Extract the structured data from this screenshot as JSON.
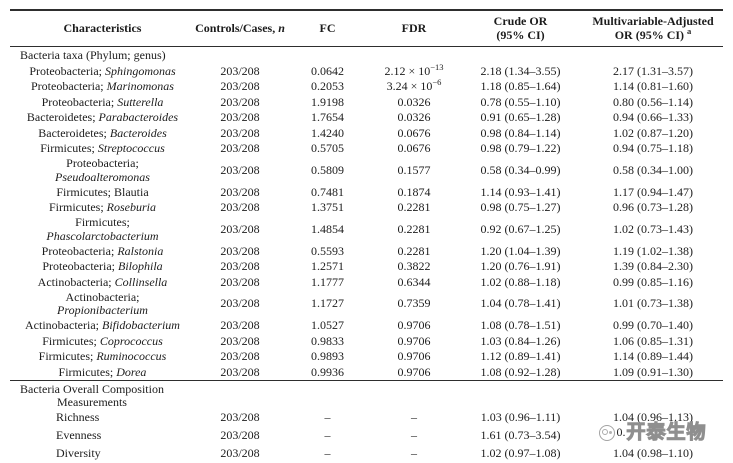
{
  "colors": {
    "rule": "#2e2e2e",
    "text": "#1c1c1c",
    "watermark_gray": "#8f8f8f"
  },
  "header": {
    "characteristics": "Characteristics",
    "controls_cases_prefix": "Controls/Cases, ",
    "controls_cases_n": "n",
    "fc": "FC",
    "fdr": "FDR",
    "crude_line1": "Crude OR",
    "crude_line2": "(95% CI)",
    "adj_line1": "Multivariable-Adjusted",
    "adj_line2": "OR (95% CI)",
    "adj_sup": "a"
  },
  "rows": [
    {
      "kind": "section",
      "lines": [
        "Bacteria taxa (Phylum; genus)"
      ]
    },
    {
      "kind": "taxon",
      "phylum": "Proteobacteria",
      "genus": "Sphingomonas",
      "italic_genus": true,
      "stacked": false,
      "n": "203/208",
      "fc": "0.0642",
      "fdr": "2.12 × 10",
      "fdr_exp": "−13",
      "crude": "2.18 (1.34–3.55)",
      "adj": "2.17 (1.31–3.57)"
    },
    {
      "kind": "taxon",
      "phylum": "Proteobacteria",
      "genus": "Marinomonas",
      "italic_genus": true,
      "stacked": false,
      "n": "203/208",
      "fc": "0.2053",
      "fdr": "3.24 × 10",
      "fdr_exp": "−6",
      "crude": "1.18 (0.85–1.64)",
      "adj": "1.14 (0.81–1.60)"
    },
    {
      "kind": "taxon",
      "phylum": "Proteobacteria",
      "genus": "Sutterella",
      "italic_genus": true,
      "stacked": false,
      "n": "203/208",
      "fc": "1.9198",
      "fdr": "0.0326",
      "crude": "0.78 (0.55–1.10)",
      "adj": "0.80 (0.56–1.14)"
    },
    {
      "kind": "taxon",
      "phylum": "Bacteroidetes",
      "genus": "Parabacteroides",
      "italic_genus": true,
      "stacked": false,
      "n": "203/208",
      "fc": "1.7654",
      "fdr": "0.0326",
      "crude": "0.91 (0.65–1.28)",
      "adj": "0.94 (0.66–1.33)"
    },
    {
      "kind": "taxon",
      "phylum": "Bacteroidetes",
      "genus": "Bacteroides",
      "italic_genus": true,
      "stacked": false,
      "n": "203/208",
      "fc": "1.4240",
      "fdr": "0.0676",
      "crude": "0.98 (0.84–1.14)",
      "adj": "1.02 (0.87–1.20)"
    },
    {
      "kind": "taxon",
      "phylum": "Firmicutes",
      "genus": "Streptococcus",
      "italic_genus": true,
      "stacked": false,
      "n": "203/208",
      "fc": "0.5705",
      "fdr": "0.0676",
      "crude": "0.98 (0.79–1.22)",
      "adj": "0.94 (0.75–1.18)"
    },
    {
      "kind": "taxon",
      "phylum": "Proteobacteria",
      "genus": "Pseudoalteromonas",
      "italic_genus": true,
      "stacked": true,
      "n": "203/208",
      "fc": "0.5809",
      "fdr": "0.1577",
      "crude": "0.58 (0.34–0.99)",
      "adj": "0.58 (0.34–1.00)"
    },
    {
      "kind": "taxon",
      "phylum": "Firmicutes",
      "genus": "Blautia",
      "italic_genus": false,
      "stacked": false,
      "n": "203/208",
      "fc": "0.7481",
      "fdr": "0.1874",
      "crude": "1.14 (0.93–1.41)",
      "adj": "1.17 (0.94–1.47)"
    },
    {
      "kind": "taxon",
      "phylum": "Firmicutes",
      "genus": "Roseburia",
      "italic_genus": true,
      "stacked": false,
      "n": "203/208",
      "fc": "1.3751",
      "fdr": "0.2281",
      "crude": "0.98 (0.75–1.27)",
      "adj": "0.96 (0.73–1.28)"
    },
    {
      "kind": "taxon",
      "phylum": "Firmicutes",
      "genus": "Phascolarctobacterium",
      "italic_genus": true,
      "stacked": true,
      "n": "203/208",
      "fc": "1.4854",
      "fdr": "0.2281",
      "crude": "0.92 (0.67–1.25)",
      "adj": "1.02 (0.73–1.43)"
    },
    {
      "kind": "taxon",
      "phylum": "Proteobacteria",
      "genus": "Ralstonia",
      "italic_genus": true,
      "stacked": false,
      "n": "203/208",
      "fc": "0.5593",
      "fdr": "0.2281",
      "crude": "1.20 (1.04–1.39)",
      "adj": "1.19 (1.02–1.38)"
    },
    {
      "kind": "taxon",
      "phylum": "Proteobacteria",
      "genus": "Bilophila",
      "italic_genus": true,
      "stacked": false,
      "n": "203/208",
      "fc": "1.2571",
      "fdr": "0.3822",
      "crude": "1.20 (0.76–1.91)",
      "adj": "1.39 (0.84–2.30)"
    },
    {
      "kind": "taxon",
      "phylum": "Actinobacteria",
      "genus": "Collinsella",
      "italic_genus": true,
      "stacked": false,
      "n": "203/208",
      "fc": "1.1777",
      "fdr": "0.6344",
      "crude": "1.02 (0.88–1.18)",
      "adj": "0.99 (0.85–1.16)"
    },
    {
      "kind": "taxon",
      "phylum": "Actinobacteria",
      "genus": "Propionibacterium",
      "italic_genus": true,
      "stacked": true,
      "n": "203/208",
      "fc": "1.1727",
      "fdr": "0.7359",
      "crude": "1.04 (0.78–1.41)",
      "adj": "1.01 (0.73–1.38)"
    },
    {
      "kind": "taxon",
      "phylum": "Actinobacteria",
      "genus": "Bifidobacterium",
      "italic_genus": true,
      "stacked": false,
      "n": "203/208",
      "fc": "1.0527",
      "fdr": "0.9706",
      "crude": "1.08 (0.78–1.51)",
      "adj": "0.99 (0.70–1.40)"
    },
    {
      "kind": "taxon",
      "phylum": "Firmicutes",
      "genus": "Coprococcus",
      "italic_genus": true,
      "stacked": false,
      "n": "203/208",
      "fc": "0.9833",
      "fdr": "0.9706",
      "crude": "1.03 (0.84–1.26)",
      "adj": "1.06 (0.85–1.31)"
    },
    {
      "kind": "taxon",
      "phylum": "Firmicutes",
      "genus": "Ruminococcus",
      "italic_genus": true,
      "stacked": false,
      "n": "203/208",
      "fc": "0.9893",
      "fdr": "0.9706",
      "crude": "1.12 (0.89–1.41)",
      "adj": "1.14 (0.89–1.44)"
    },
    {
      "kind": "taxon",
      "phylum": "Firmicutes",
      "genus": "Dorea",
      "italic_genus": true,
      "stacked": false,
      "n": "203/208",
      "fc": "0.9936",
      "fdr": "0.9706",
      "crude": "1.08 (0.92–1.28)",
      "adj": "1.09 (0.91–1.30)"
    }
  ],
  "bottom_rows": [
    {
      "kind": "section",
      "lines": [
        "Bacteria Overall Composition",
        "Measurements"
      ]
    },
    {
      "kind": "measure",
      "label": "Richness",
      "n": "203/208",
      "fc": "–",
      "fdr": "–",
      "crude": "1.03 (0.96–1.11)",
      "adj": "1.04 (0.96–1.13)"
    },
    {
      "kind": "measure",
      "label": "Evenness",
      "n": "203/208",
      "fc": "–",
      "fdr": "–",
      "crude": "1.61 (0.73–3.54)",
      "adj": "",
      "adj_watermarked": true,
      "adj_fragment": "0."
    },
    {
      "kind": "measure",
      "label": "Diversity",
      "n": "203/208",
      "fc": "–",
      "fdr": "–",
      "crude": "1.02 (0.97–1.08)",
      "adj": "1.04 (0.98–1.10)"
    }
  ],
  "watermark": {
    "text": "开泰生物",
    "icon": "circle-logo"
  }
}
